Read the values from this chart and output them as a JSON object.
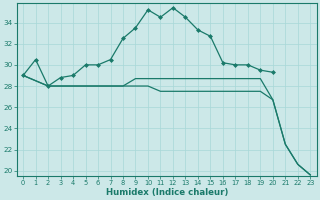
{
  "xlabel": "Humidex (Indice chaleur)",
  "bg_color": "#cce8e8",
  "line_color": "#1a7a6a",
  "grid_color": "#a8d8d8",
  "xlim": [
    -0.5,
    23.5
  ],
  "ylim": [
    19.5,
    35.8
  ],
  "yticks": [
    20,
    22,
    24,
    26,
    28,
    30,
    32,
    34
  ],
  "xticks": [
    0,
    1,
    2,
    3,
    4,
    5,
    6,
    7,
    8,
    9,
    10,
    11,
    12,
    13,
    14,
    15,
    16,
    17,
    18,
    19,
    20,
    21,
    22,
    23
  ],
  "peak_x": [
    0,
    1,
    2,
    3,
    4,
    5,
    6,
    7,
    8,
    9,
    10,
    11,
    12,
    13,
    14,
    15,
    16,
    17,
    18,
    19,
    20
  ],
  "peak_y": [
    29,
    30.5,
    28,
    28.8,
    29.0,
    30.0,
    30.0,
    30.5,
    32.5,
    33.5,
    35.2,
    34.5,
    35.4,
    34.5,
    33.3,
    32.7,
    30.2,
    30.0,
    30.0,
    29.5,
    29.3
  ],
  "flat1_x": [
    0,
    2,
    3,
    4,
    5,
    6,
    7,
    8,
    9,
    10,
    11,
    12,
    13,
    14,
    15,
    16,
    17,
    18,
    19,
    20,
    21,
    22,
    23
  ],
  "flat1_y": [
    29,
    28,
    28,
    28,
    28,
    28,
    28,
    28,
    28,
    28,
    27.5,
    27.5,
    27.5,
    27.5,
    27.5,
    27.5,
    27.5,
    27.5,
    27.5,
    26.7,
    22.5,
    20.6,
    19.6
  ],
  "flat2_x": [
    0,
    2,
    3,
    4,
    5,
    6,
    7,
    8,
    9,
    10,
    11,
    12,
    13,
    14,
    15,
    16,
    17,
    18,
    19,
    20,
    21,
    22,
    23
  ],
  "flat2_y": [
    29,
    28,
    28,
    28,
    28,
    28,
    28,
    28,
    28.7,
    28.7,
    28.7,
    28.7,
    28.7,
    28.7,
    28.7,
    28.7,
    28.7,
    28.7,
    28.7,
    26.7,
    22.5,
    20.6,
    19.6
  ]
}
